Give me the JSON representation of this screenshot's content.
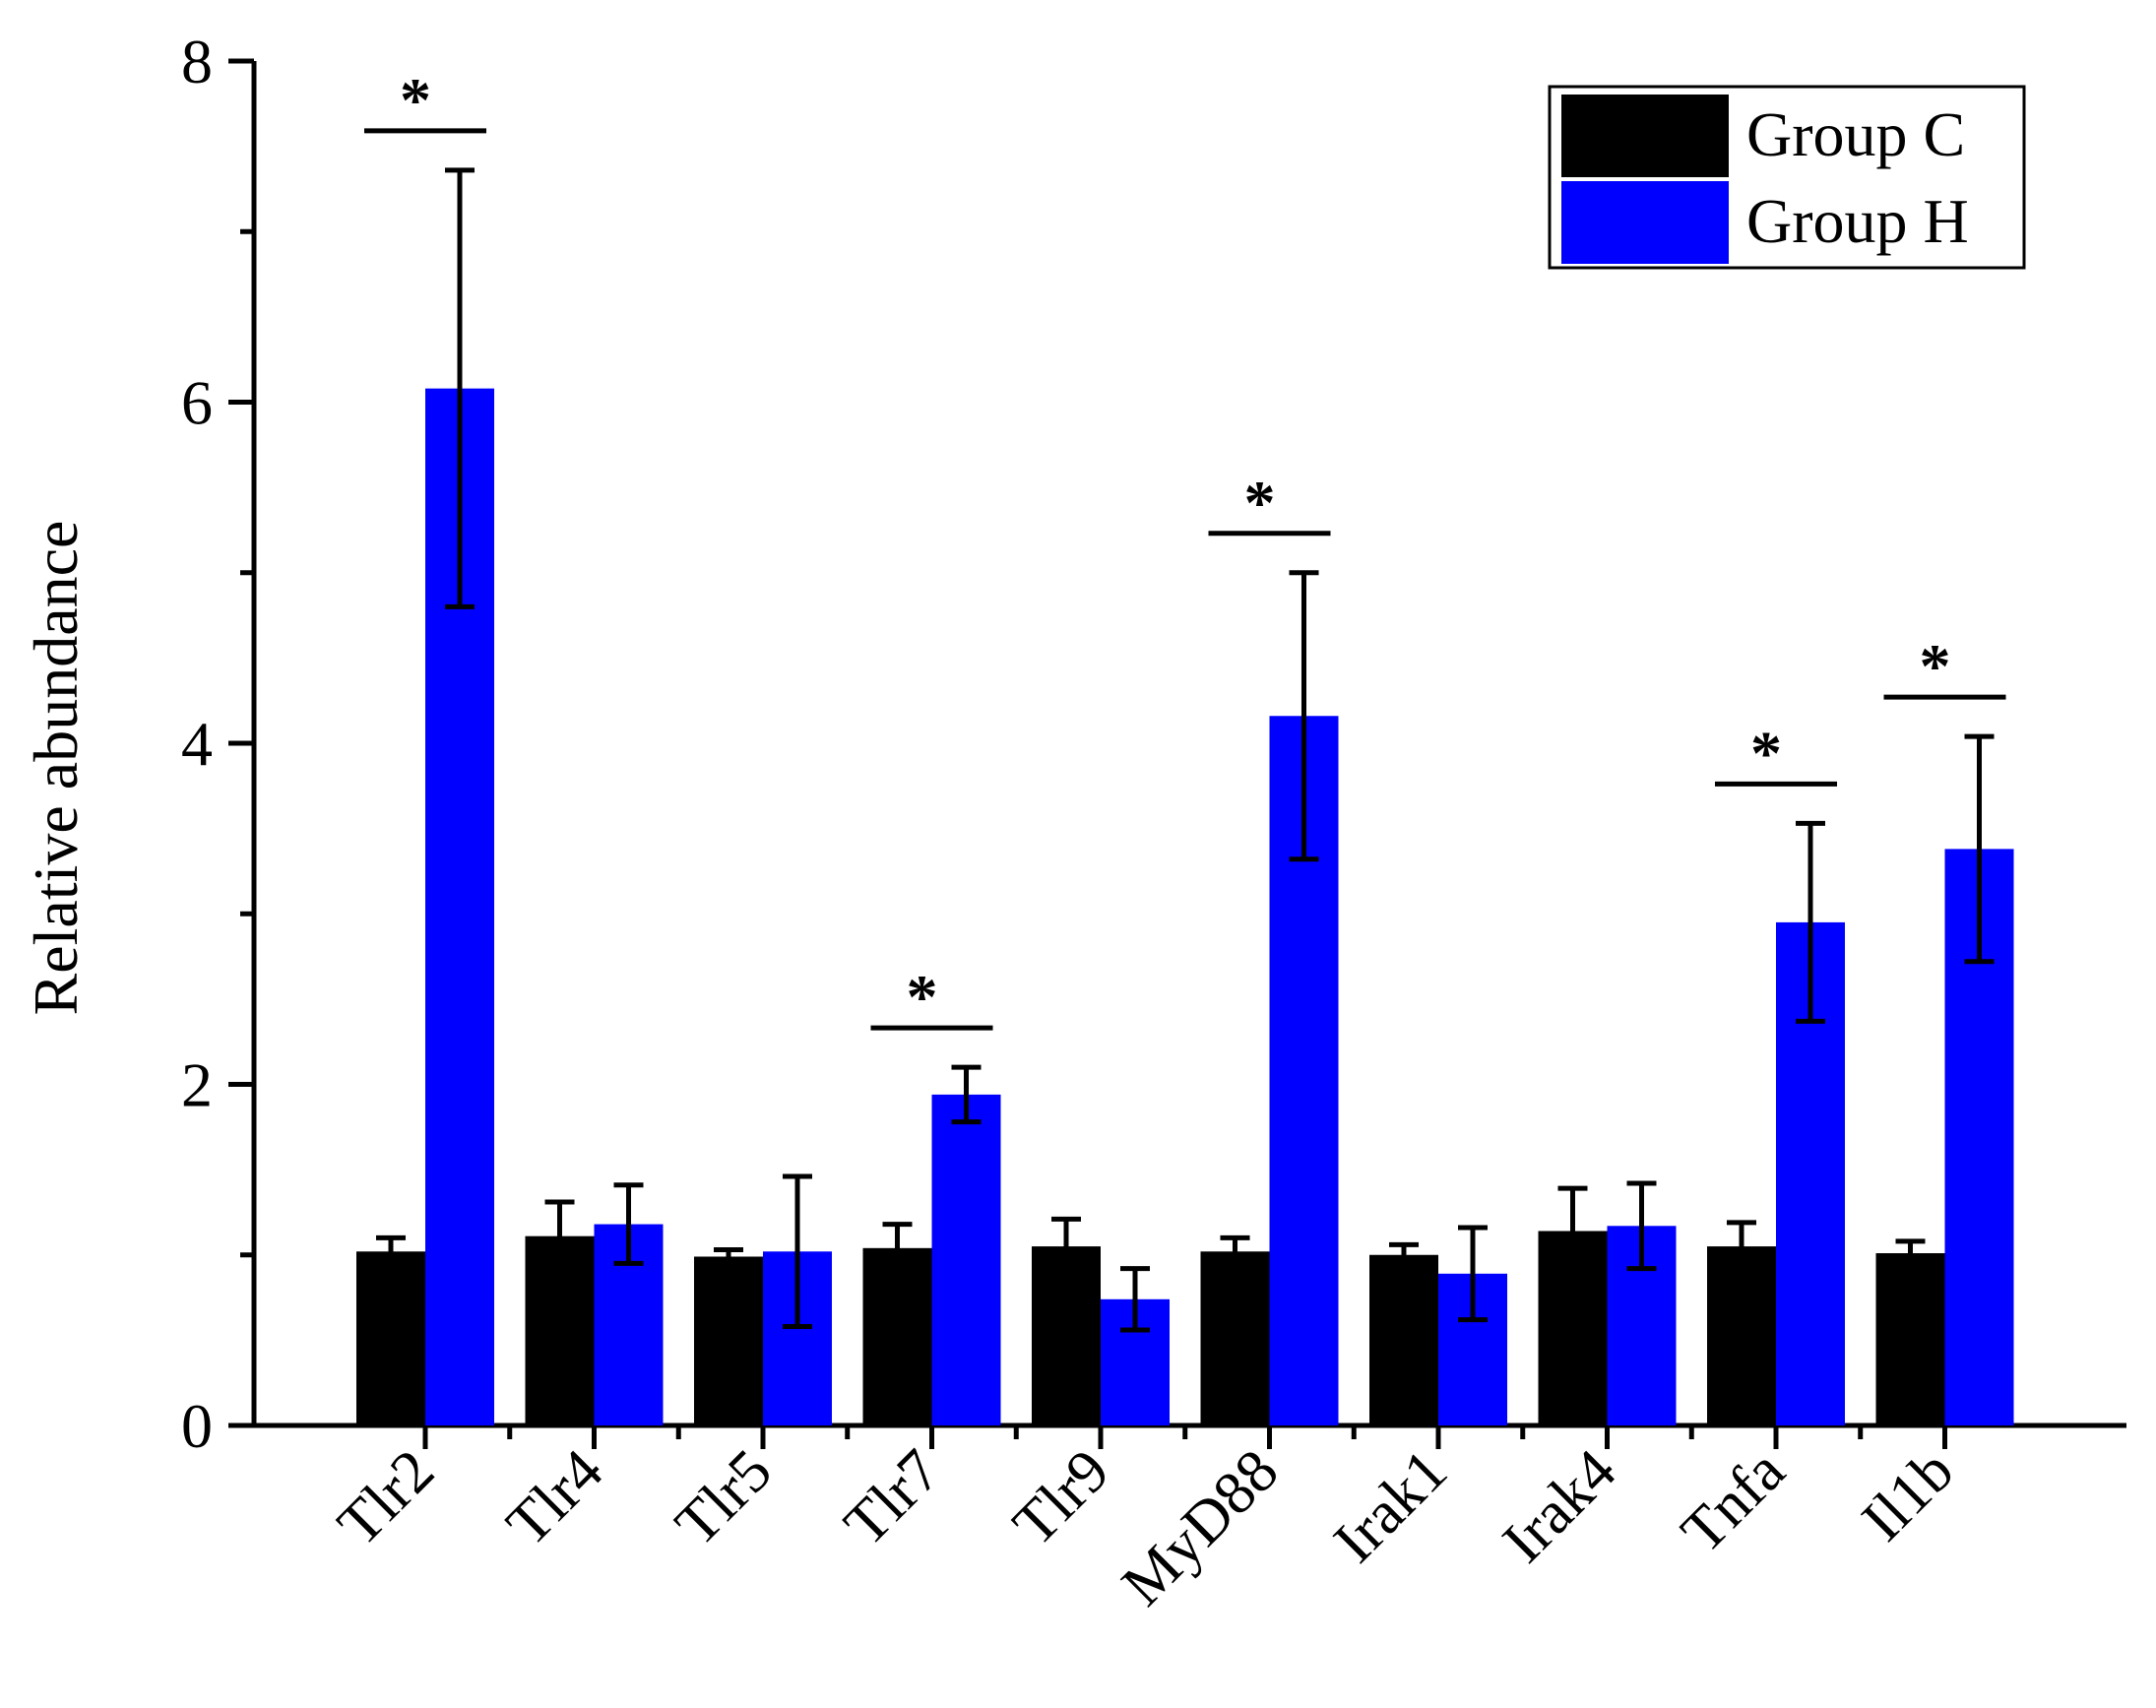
{
  "chart_data": {
    "type": "bar",
    "title": "",
    "xlabel": "",
    "ylabel": "Relative abundance",
    "ylim": [
      0,
      8
    ],
    "yticks": [
      "0",
      "2",
      "4",
      "6",
      "8"
    ],
    "categories": [
      "Tlr2",
      "Tlr4",
      "Tlr5",
      "Tlr7",
      "Tlr9",
      "MyD88",
      "Irak1",
      "Irak4",
      "Tnfa",
      "Il1b"
    ],
    "series": [
      {
        "name": "Group C",
        "color": "#000000",
        "values": [
          1.02,
          1.11,
          0.99,
          1.04,
          1.05,
          1.02,
          1.0,
          1.14,
          1.05,
          1.01
        ],
        "errors": [
          0.08,
          0.2,
          0.04,
          0.14,
          0.16,
          0.08,
          0.06,
          0.25,
          0.14,
          0.07
        ]
      },
      {
        "name": "Group H",
        "color": "#0000ff",
        "values": [
          6.08,
          1.18,
          1.02,
          1.94,
          0.74,
          4.16,
          0.89,
          1.17,
          2.95,
          3.38
        ],
        "errors": [
          1.28,
          0.23,
          0.44,
          0.16,
          0.18,
          0.84,
          0.27,
          0.25,
          0.58,
          0.66
        ]
      }
    ],
    "significance": [
      {
        "category": "Tlr2",
        "label": "*"
      },
      {
        "category": "Tlr7",
        "label": "*"
      },
      {
        "category": "MyD88",
        "label": "*"
      },
      {
        "category": "Tnfa",
        "label": "*"
      },
      {
        "category": "Il1b",
        "label": "*"
      }
    ],
    "legend_position": "top-right"
  }
}
